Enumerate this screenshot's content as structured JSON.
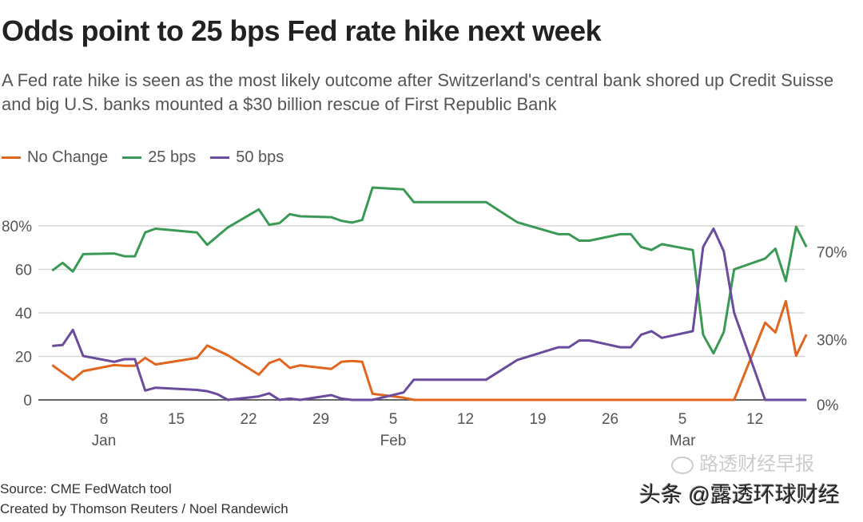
{
  "title": "Odds point to 25 bps Fed rate hike next week",
  "subtitle": "A Fed rate hike is seen as the most likely outcome after Switzerland's central bank shored up Credit Suisse and big U.S. banks mounted a $30 billion rescue of First Republic Bank",
  "footer": {
    "source": "Source: CME FedWatch tool",
    "credit": "Created by Thomson Reuters / Noel Randewich"
  },
  "watermark": {
    "main": "头条 @露透环球财经",
    "faded": "路透财经早报",
    "icon": "wechat-icon"
  },
  "chart_data": {
    "type": "line",
    "title": "Odds point to 25 bps Fed rate hike next week",
    "xlabel": "",
    "ylabel": "",
    "ylim": [
      0,
      100
    ],
    "grid": true,
    "legend_placement": "top-left",
    "y_ticks": [
      "0",
      "20",
      "40",
      "60",
      "80%"
    ],
    "x_ticks": [
      {
        "date": "Jan 8",
        "label": "8",
        "month": "Jan"
      },
      {
        "date": "Jan 15",
        "label": "15",
        "month": ""
      },
      {
        "date": "Jan 22",
        "label": "22",
        "month": ""
      },
      {
        "date": "Jan 29",
        "label": "29",
        "month": ""
      },
      {
        "date": "Feb 5",
        "label": "5",
        "month": "Feb"
      },
      {
        "date": "Feb 12",
        "label": "12",
        "month": ""
      },
      {
        "date": "Feb 19",
        "label": "19",
        "month": ""
      },
      {
        "date": "Feb 26",
        "label": "26",
        "month": ""
      },
      {
        "date": "Mar 5",
        "label": "5",
        "month": "Mar"
      },
      {
        "date": "Mar 12",
        "label": "12",
        "month": ""
      }
    ],
    "end_labels": [
      {
        "series": "25 bps",
        "value": 70,
        "label": "70%"
      },
      {
        "series": "No Change",
        "value": 30,
        "label": "30%"
      },
      {
        "series": "50 bps",
        "value": 0,
        "label": "0%"
      }
    ],
    "series": [
      {
        "name": "No Change",
        "color": "#e0661f",
        "x": [
          "Jan 3",
          "Jan 4",
          "Jan 5",
          "Jan 6",
          "Jan 9",
          "Jan 10",
          "Jan 11",
          "Jan 12",
          "Jan 13",
          "Jan 17",
          "Jan 18",
          "Jan 20",
          "Jan 23",
          "Jan 24",
          "Jan 25",
          "Jan 26",
          "Jan 27",
          "Jan 30",
          "Jan 31",
          "Feb 1",
          "Feb 2",
          "Feb 3",
          "Feb 6",
          "Feb 7",
          "Mar 10",
          "Mar 13",
          "Mar 14",
          "Mar 15",
          "Mar 16",
          "Mar 17"
        ],
        "y": [
          16,
          12.5,
          9.2,
          13.2,
          16,
          15.7,
          15.7,
          19.3,
          16.3,
          19.3,
          25,
          20.5,
          11.6,
          16.9,
          18.7,
          14.7,
          15.9,
          14.2,
          17.5,
          17.9,
          17.5,
          2.8,
          1,
          0,
          0,
          35.5,
          31,
          45.4,
          20.3,
          30.1
        ]
      },
      {
        "name": "25 bps",
        "color": "#3a9a55",
        "x": [
          "Jan 3",
          "Jan 4",
          "Jan 5",
          "Jan 6",
          "Jan 9",
          "Jan 10",
          "Jan 11",
          "Jan 12",
          "Jan 13",
          "Jan 17",
          "Jan 18",
          "Jan 20",
          "Jan 23",
          "Jan 24",
          "Jan 25",
          "Jan 26",
          "Jan 27",
          "Jan 30",
          "Jan 31",
          "Feb 1",
          "Feb 2",
          "Feb 3",
          "Feb 6",
          "Feb 7",
          "Feb 14",
          "Feb 17",
          "Feb 21",
          "Feb 22",
          "Feb 23",
          "Feb 24",
          "Feb 27",
          "Feb 28",
          "Mar 1",
          "Mar 2",
          "Mar 3",
          "Mar 6",
          "Mar 7",
          "Mar 8",
          "Mar 9",
          "Mar 10",
          "Mar 13",
          "Mar 14",
          "Mar 15",
          "Mar 16",
          "Mar 17"
        ],
        "y": [
          59.4,
          63,
          59,
          67,
          67.3,
          66,
          66,
          77,
          78.7,
          77,
          71.3,
          79.3,
          87.6,
          80.5,
          81.3,
          85.4,
          84.4,
          84,
          82.3,
          81.5,
          82.7,
          97.6,
          96.8,
          90.9,
          90.9,
          81.7,
          76.2,
          76.2,
          73.2,
          73.2,
          76.2,
          76.2,
          70.3,
          68.9,
          71.6,
          68.9,
          30,
          21.4,
          31.2,
          60,
          65,
          69.5,
          54.6,
          79.6,
          70.3
        ]
      },
      {
        "name": "50 bps",
        "color": "#6a4c9c",
        "x": [
          "Jan 3",
          "Jan 4",
          "Jan 5",
          "Jan 6",
          "Jan 9",
          "Jan 10",
          "Jan 11",
          "Jan 12",
          "Jan 13",
          "Jan 17",
          "Jan 18",
          "Jan 19",
          "Jan 20",
          "Jan 23",
          "Jan 24",
          "Jan 25",
          "Jan 26",
          "Jan 27",
          "Jan 30",
          "Jan 31",
          "Feb 1",
          "Feb 3",
          "Feb 6",
          "Feb 7",
          "Feb 14",
          "Feb 17",
          "Feb 21",
          "Feb 22",
          "Feb 23",
          "Feb 24",
          "Feb 27",
          "Feb 28",
          "Mar 1",
          "Mar 2",
          "Mar 3",
          "Mar 6",
          "Mar 7",
          "Mar 8",
          "Mar 9",
          "Mar 10",
          "Mar 13",
          "Mar 17"
        ],
        "y": [
          24.8,
          25.2,
          32.2,
          20.2,
          17.5,
          18.7,
          18.7,
          4.3,
          5.6,
          4.6,
          4,
          2.6,
          0,
          1.6,
          3,
          0,
          0.6,
          0,
          2.2,
          0.6,
          0,
          0,
          3.4,
          9.3,
          9.3,
          18.3,
          24.2,
          24.2,
          27.3,
          27.3,
          24.2,
          24.2,
          30,
          31.6,
          28.5,
          31.6,
          70.3,
          78.7,
          68.3,
          40.1,
          0,
          0
        ]
      }
    ]
  }
}
